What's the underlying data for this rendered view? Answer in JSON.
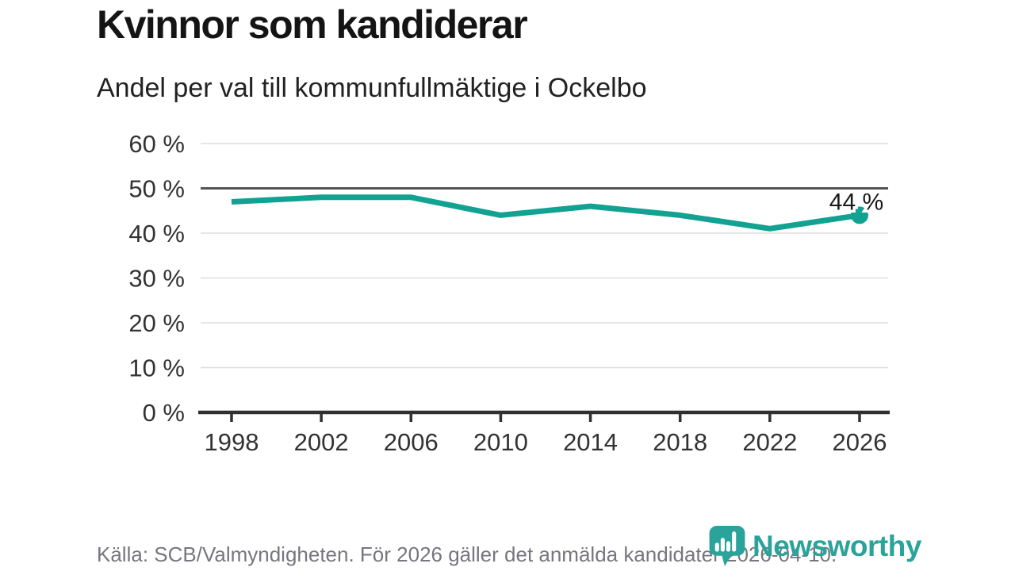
{
  "colors": {
    "line": "#12a291",
    "reference_line": "#555555",
    "gridline": "#dddddd",
    "axis": "#303030",
    "tick_label": "#333333",
    "annotation": "#1a1a1a",
    "source_text": "#76767e",
    "brand": "#2aa39a"
  },
  "footer": {
    "source": "Källa: SCB/Valmyndigheten. För 2026 gäller det anmälda kandidater 2026-04-10.",
    "brand_name": "Newsworthy"
  },
  "chart_data": {
    "type": "line",
    "title": "Kvinnor som kandiderar",
    "subtitle": "Andel per val till kommunfullmäktige i Ockelbo",
    "categories": [
      "1998",
      "2002",
      "2006",
      "2010",
      "2014",
      "2018",
      "2022",
      "2026"
    ],
    "values": [
      47,
      48,
      48,
      44,
      46,
      44,
      41,
      44
    ],
    "unit": "%",
    "ylim": [
      0,
      60
    ],
    "yticks": [
      0,
      10,
      20,
      30,
      40,
      50,
      60
    ],
    "ytick_suffix": " %",
    "reference_line": 50,
    "grid": true,
    "legend": false,
    "end_label": "44 %",
    "end_marker": true
  }
}
